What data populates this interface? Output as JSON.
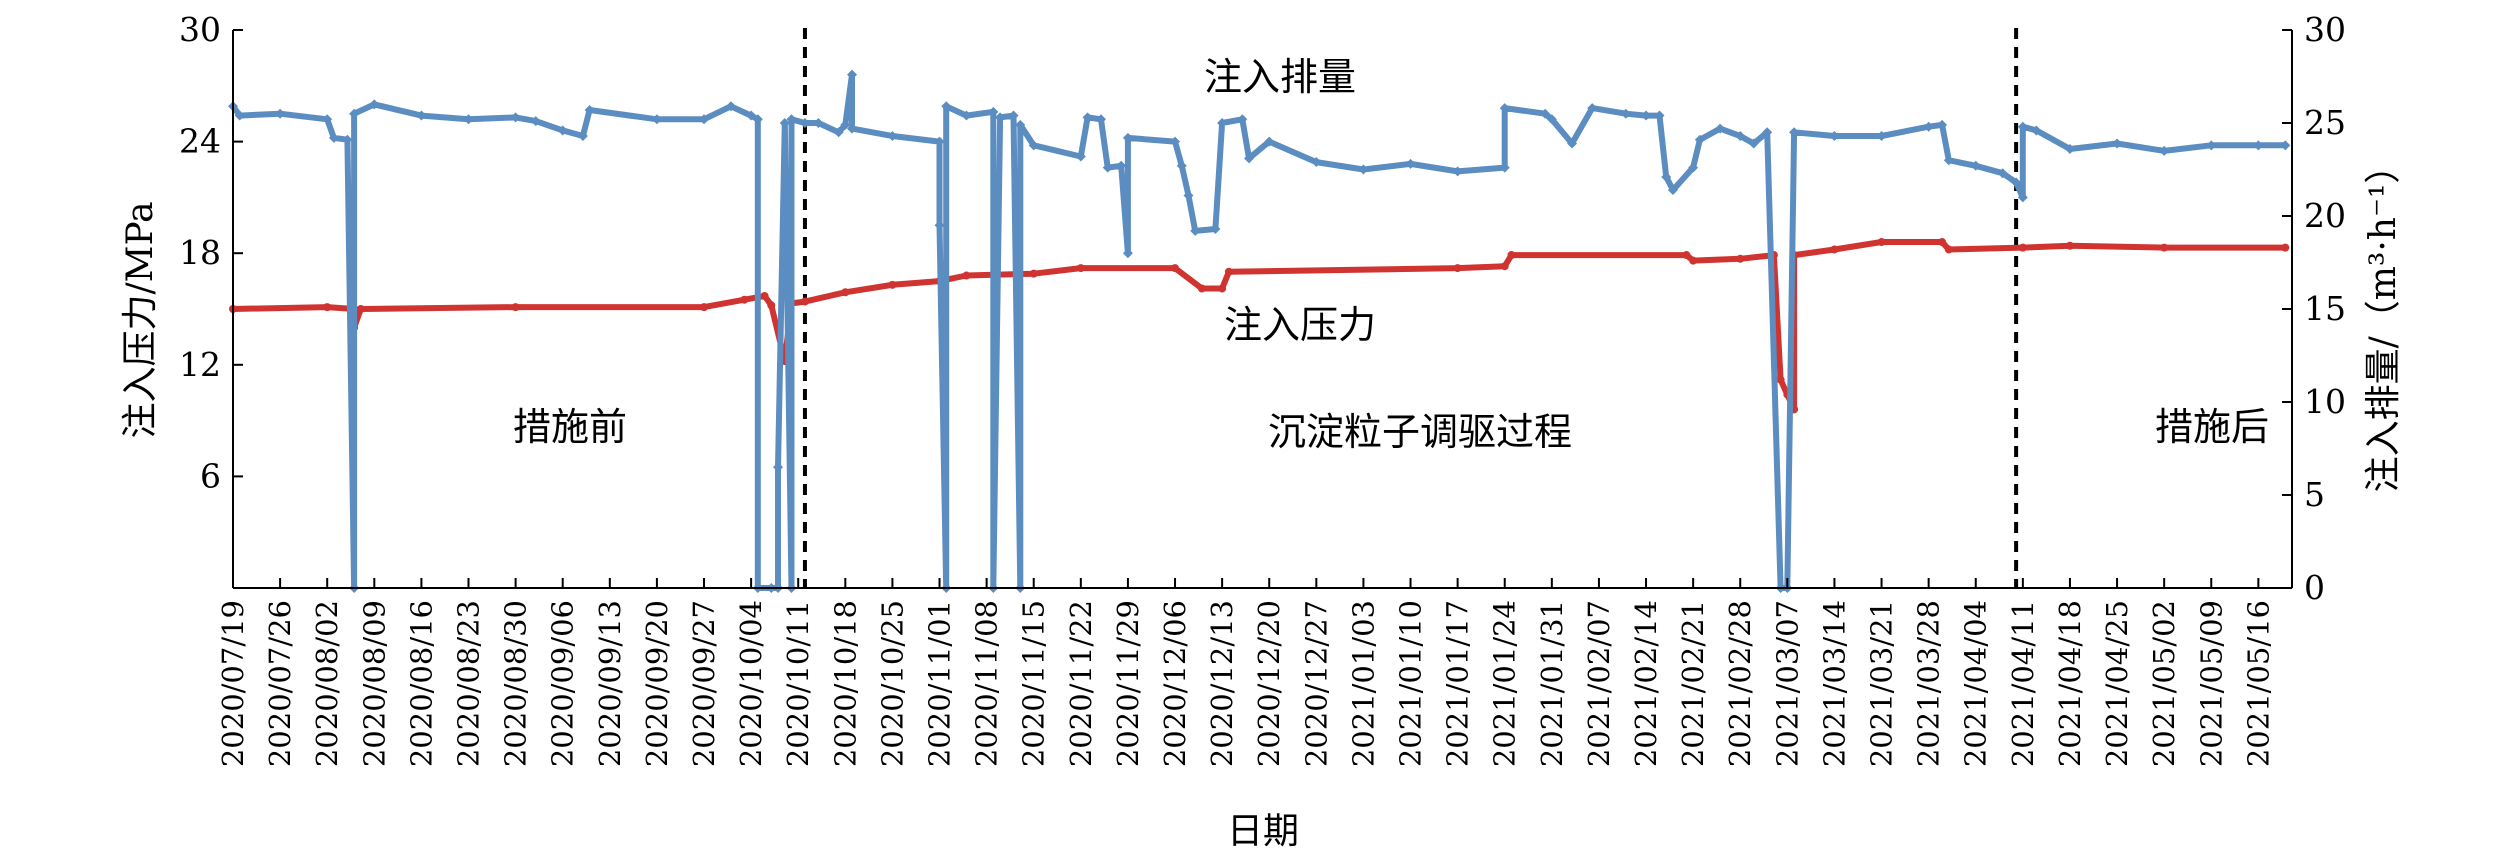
{
  "chart_data": {
    "type": "line",
    "xlabel": "日期",
    "ylabel_left": "注入压力/MPa",
    "ylabel_right": "注入排量/（m³·h⁻¹）",
    "ylim_left": [
      0,
      30
    ],
    "ylim_right": [
      0,
      30
    ],
    "yticks_left": [
      6,
      12,
      18,
      24,
      30
    ],
    "yticks_right": [
      0,
      5,
      10,
      15,
      20,
      25,
      30
    ],
    "x_range": [
      "2020-07-19",
      "2021-05-21"
    ],
    "x_tick_labels": [
      "2020/07/19",
      "2020/07/26",
      "2020/08/02",
      "2020/08/09",
      "2020/08/16",
      "2020/08/23",
      "2020/08/30",
      "2020/09/06",
      "2020/09/13",
      "2020/09/20",
      "2020/09/27",
      "2020/10/04",
      "2020/10/11",
      "2020/10/18",
      "2020/10/25",
      "2020/11/01",
      "2020/11/08",
      "2020/11/15",
      "2020/11/22",
      "2020/11/29",
      "2020/12/06",
      "2020/12/13",
      "2020/12/20",
      "2020/12/27",
      "2021/01/03",
      "2021/01/10",
      "2021/01/17",
      "2021/01/24",
      "2021/01/31",
      "2021/02/07",
      "2021/02/14",
      "2021/02/21",
      "2021/02/28",
      "2021/03/07",
      "2021/03/14",
      "2021/03/21",
      "2021/03/28",
      "2021/04/04",
      "2021/04/11",
      "2021/04/18",
      "2021/04/25",
      "2021/05/02",
      "2021/05/09",
      "2021/05/16"
    ],
    "phase_dividers": [
      "2020-10-12",
      "2021-04-10"
    ],
    "annotations": {
      "flow_label": "注入排量",
      "pressure_label": "注入压力",
      "before_label": "措施前",
      "during_label": "沉淀粒子调驱过程",
      "after_label": "措施后"
    },
    "series": [
      {
        "axis": "left",
        "color": "#d03431",
        "points": [
          [
            "2020-07-19",
            15.0
          ],
          [
            "2020-08-02",
            15.1
          ],
          [
            "2020-08-06",
            15.0
          ],
          [
            "2020-08-06",
            14.0
          ],
          [
            "2020-08-07",
            15.0
          ],
          [
            "2020-08-30",
            15.1
          ],
          [
            "2020-09-27",
            15.1
          ],
          [
            "2020-10-03",
            15.5
          ],
          [
            "2020-10-06",
            15.7
          ],
          [
            "2020-10-07",
            15.2
          ],
          [
            "2020-10-09",
            12.2
          ],
          [
            "2020-10-10",
            15.3
          ],
          [
            "2020-10-12",
            15.4
          ],
          [
            "2020-10-18",
            15.9
          ],
          [
            "2020-10-25",
            16.3
          ],
          [
            "2020-11-01",
            16.5
          ],
          [
            "2020-11-05",
            16.8
          ],
          [
            "2020-11-15",
            16.9
          ],
          [
            "2020-11-22",
            17.2
          ],
          [
            "2020-12-06",
            17.2
          ],
          [
            "2020-12-10",
            16.1
          ],
          [
            "2020-12-13",
            16.1
          ],
          [
            "2020-12-14",
            17.0
          ],
          [
            "2021-01-17",
            17.2
          ],
          [
            "2021-01-24",
            17.3
          ],
          [
            "2021-01-25",
            17.9
          ],
          [
            "2021-02-20",
            17.9
          ],
          [
            "2021-02-21",
            17.6
          ],
          [
            "2021-02-28",
            17.7
          ],
          [
            "2021-03-05",
            17.9
          ],
          [
            "2021-03-06",
            11.2
          ],
          [
            "2021-03-07",
            10.4
          ],
          [
            "2021-03-08",
            9.6
          ],
          [
            "2021-03-08",
            17.9
          ],
          [
            "2021-03-14",
            18.2
          ],
          [
            "2021-03-21",
            18.6
          ],
          [
            "2021-03-30",
            18.6
          ],
          [
            "2021-03-31",
            18.2
          ],
          [
            "2021-04-11",
            18.3
          ],
          [
            "2021-04-18",
            18.4
          ],
          [
            "2021-05-02",
            18.3
          ],
          [
            "2021-05-20",
            18.3
          ]
        ]
      },
      {
        "axis": "right",
        "color": "#5b8dc1",
        "points": [
          [
            "2020-07-19",
            25.9
          ],
          [
            "2020-07-20",
            25.4
          ],
          [
            "2020-07-26",
            25.5
          ],
          [
            "2020-08-02",
            25.2
          ],
          [
            "2020-08-03",
            24.2
          ],
          [
            "2020-08-05",
            24.1
          ],
          [
            "2020-08-06",
            0.0
          ],
          [
            "2020-08-06",
            25.5
          ],
          [
            "2020-08-09",
            26.0
          ],
          [
            "2020-08-16",
            25.4
          ],
          [
            "2020-08-23",
            25.2
          ],
          [
            "2020-08-30",
            25.3
          ],
          [
            "2020-09-02",
            25.1
          ],
          [
            "2020-09-06",
            24.6
          ],
          [
            "2020-09-09",
            24.3
          ],
          [
            "2020-09-10",
            25.7
          ],
          [
            "2020-09-20",
            25.2
          ],
          [
            "2020-09-27",
            25.2
          ],
          [
            "2020-10-01",
            25.9
          ],
          [
            "2020-10-04",
            25.4
          ],
          [
            "2020-10-05",
            25.2
          ],
          [
            "2020-10-05",
            0.0
          ],
          [
            "2020-10-07",
            0.0
          ],
          [
            "2020-10-08",
            0.0
          ],
          [
            "2020-10-08",
            6.5
          ],
          [
            "2020-10-09",
            25.0
          ],
          [
            "2020-10-10",
            0.0
          ],
          [
            "2020-10-10",
            25.2
          ],
          [
            "2020-10-12",
            25.0
          ],
          [
            "2020-10-14",
            25.0
          ],
          [
            "2020-10-17",
            24.5
          ],
          [
            "2020-10-18",
            24.9
          ],
          [
            "2020-10-19",
            27.6
          ],
          [
            "2020-10-19",
            24.7
          ],
          [
            "2020-10-25",
            24.3
          ],
          [
            "2020-11-01",
            24.0
          ],
          [
            "2020-11-01",
            19.5
          ],
          [
            "2020-11-02",
            0.0
          ],
          [
            "2020-11-02",
            25.9
          ],
          [
            "2020-11-05",
            25.4
          ],
          [
            "2020-11-09",
            25.6
          ],
          [
            "2020-11-09",
            0.0
          ],
          [
            "2020-11-10",
            25.3
          ],
          [
            "2020-11-12",
            25.4
          ],
          [
            "2020-11-13",
            0.0
          ],
          [
            "2020-11-13",
            24.9
          ],
          [
            "2020-11-15",
            23.8
          ],
          [
            "2020-11-22",
            23.2
          ],
          [
            "2020-11-23",
            25.3
          ],
          [
            "2020-11-25",
            25.2
          ],
          [
            "2020-11-26",
            22.6
          ],
          [
            "2020-11-28",
            22.7
          ],
          [
            "2020-11-29",
            18.0
          ],
          [
            "2020-11-29",
            24.2
          ],
          [
            "2020-12-06",
            24.0
          ],
          [
            "2020-12-07",
            22.7
          ],
          [
            "2020-12-08",
            21.1
          ],
          [
            "2020-12-09",
            19.2
          ],
          [
            "2020-12-12",
            19.3
          ],
          [
            "2020-12-13",
            25.0
          ],
          [
            "2020-12-16",
            25.2
          ],
          [
            "2020-12-17",
            23.1
          ],
          [
            "2020-12-20",
            24.0
          ],
          [
            "2020-12-27",
            22.9
          ],
          [
            "2021-01-03",
            22.5
          ],
          [
            "2021-01-10",
            22.8
          ],
          [
            "2021-01-17",
            22.4
          ],
          [
            "2021-01-24",
            22.6
          ],
          [
            "2021-01-24",
            25.8
          ],
          [
            "2021-01-30",
            25.5
          ],
          [
            "2021-01-31",
            25.2
          ],
          [
            "2021-02-03",
            23.9
          ],
          [
            "2021-02-06",
            25.8
          ],
          [
            "2021-02-11",
            25.5
          ],
          [
            "2021-02-14",
            25.4
          ],
          [
            "2021-02-16",
            25.4
          ],
          [
            "2021-02-17",
            22.1
          ],
          [
            "2021-02-18",
            21.4
          ],
          [
            "2021-02-21",
            22.6
          ],
          [
            "2021-02-22",
            24.1
          ],
          [
            "2021-02-25",
            24.7
          ],
          [
            "2021-02-28",
            24.3
          ],
          [
            "2021-03-02",
            23.9
          ],
          [
            "2021-03-04",
            24.5
          ],
          [
            "2021-03-06",
            0.0
          ],
          [
            "2021-03-07",
            0.0
          ],
          [
            "2021-03-08",
            24.5
          ],
          [
            "2021-03-14",
            24.3
          ],
          [
            "2021-03-21",
            24.3
          ],
          [
            "2021-03-28",
            24.8
          ],
          [
            "2021-03-30",
            24.9
          ],
          [
            "2021-03-31",
            23.0
          ],
          [
            "2021-04-04",
            22.7
          ],
          [
            "2021-04-08",
            22.3
          ],
          [
            "2021-04-10",
            21.8
          ],
          [
            "2021-04-11",
            21.0
          ],
          [
            "2021-04-11",
            24.8
          ],
          [
            "2021-04-13",
            24.6
          ],
          [
            "2021-04-18",
            23.6
          ],
          [
            "2021-04-25",
            23.9
          ],
          [
            "2021-05-02",
            23.5
          ],
          [
            "2021-05-09",
            23.8
          ],
          [
            "2021-05-16",
            23.8
          ],
          [
            "2021-05-20",
            23.8
          ]
        ]
      }
    ]
  }
}
